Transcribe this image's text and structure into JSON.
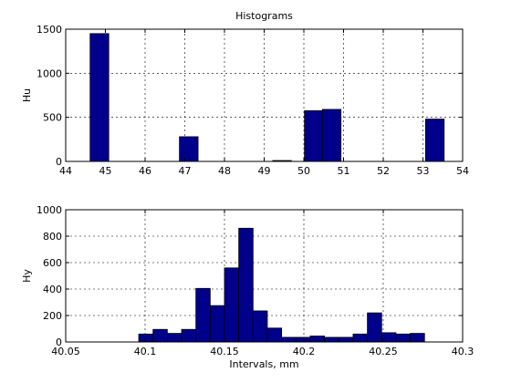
{
  "chart_data": [
    {
      "type": "bar",
      "title": "Histograms",
      "xlabel": "",
      "ylabel": "Hu",
      "xlim": [
        44,
        54
      ],
      "ylim": [
        0,
        1500
      ],
      "xticks": [
        44,
        45,
        46,
        47,
        48,
        49,
        50,
        51,
        52,
        53,
        54
      ],
      "yticks": [
        0,
        500,
        1000,
        1500
      ],
      "bin_width": 0.47,
      "x": [
        44.85,
        47.1,
        49.45,
        50.25,
        50.7,
        53.3
      ],
      "values": [
        1450,
        280,
        10,
        575,
        590,
        480
      ],
      "bar_color": "#00008b",
      "grid": true
    },
    {
      "type": "bar",
      "title": "",
      "xlabel": "Intervals, mm",
      "ylabel": "Hy",
      "xlim": [
        40.05,
        40.3
      ],
      "ylim": [
        0,
        1000
      ],
      "xticks": [
        40.05,
        40.1,
        40.15,
        40.2,
        40.25,
        40.3
      ],
      "yticks": [
        0,
        200,
        400,
        600,
        800,
        1000
      ],
      "bin_width": 0.009,
      "x": [
        40.1005,
        40.1095,
        40.1185,
        40.1275,
        40.1365,
        40.1455,
        40.1545,
        40.1635,
        40.1725,
        40.1815,
        40.1905,
        40.1995,
        40.2085,
        40.2175,
        40.2265,
        40.2355,
        40.2445,
        40.2535,
        40.2625,
        40.2715
      ],
      "values": [
        60,
        95,
        65,
        95,
        405,
        275,
        560,
        860,
        235,
        105,
        35,
        35,
        45,
        35,
        35,
        60,
        220,
        70,
        60,
        65
      ],
      "bar_color": "#00008b",
      "grid": true
    }
  ]
}
